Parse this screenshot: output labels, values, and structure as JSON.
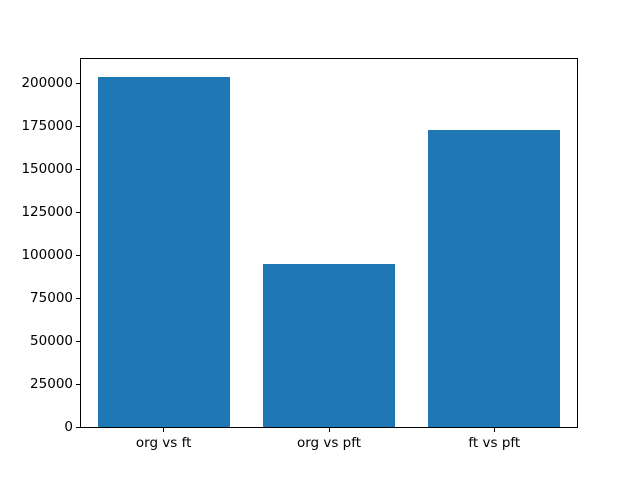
{
  "figure": {
    "background_color": "#ffffff",
    "text_color": "#000000",
    "spine_color": "#000000"
  },
  "chart_data": {
    "type": "bar",
    "title": "",
    "xlabel": "",
    "ylabel": "",
    "categories": [
      "org vs ft",
      "org vs pft",
      "ft vs pft"
    ],
    "values": [
      204000,
      95000,
      173000
    ],
    "yticks": [
      0,
      25000,
      50000,
      75000,
      100000,
      125000,
      150000,
      175000,
      200000
    ],
    "ytick_labels": [
      "0",
      "25000",
      "50000",
      "75000",
      "100000",
      "125000",
      "150000",
      "175000",
      "200000"
    ],
    "ylim": [
      0,
      214200
    ],
    "bar_color": "#1f77b4",
    "bar_width_fraction": 0.8,
    "grid": false,
    "legend": null
  }
}
